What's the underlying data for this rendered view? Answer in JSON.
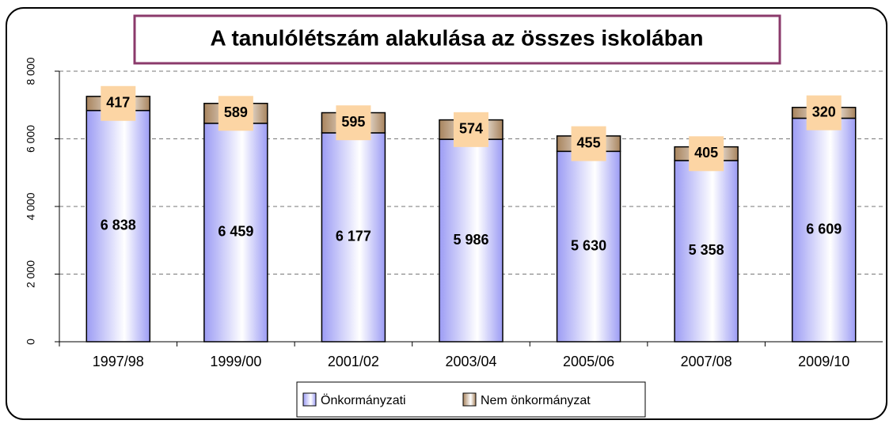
{
  "chart_data": {
    "type": "stacked_bar",
    "title": "A tanulólétszám alakulása az összes iskolában",
    "categories": [
      "1997/98",
      "1999/00",
      "2001/02",
      "2003/04",
      "2005/06",
      "2007/08",
      "2009/10"
    ],
    "series": [
      {
        "name": "Önkormányzati",
        "color": "#9c9cf4",
        "values": [
          6838,
          6459,
          6177,
          5986,
          5630,
          5358,
          6609
        ],
        "value_labels": [
          "6 838",
          "6 459",
          "6 177",
          "5 986",
          "5 630",
          "5 358",
          "6 609"
        ]
      },
      {
        "name": "Nem önkormányzat",
        "color": "#a8845e",
        "values": [
          417,
          589,
          595,
          574,
          455,
          405,
          320
        ]
      }
    ],
    "ylim": [
      0,
      8000
    ],
    "yticks": [
      {
        "value": 0,
        "label": "0"
      },
      {
        "value": 2000,
        "label": "2 000"
      },
      {
        "value": 4000,
        "label": "4 000"
      },
      {
        "value": 6000,
        "label": "6 000"
      },
      {
        "value": 8000,
        "label": "8 000"
      }
    ],
    "grid": true,
    "legend": "bottom"
  }
}
